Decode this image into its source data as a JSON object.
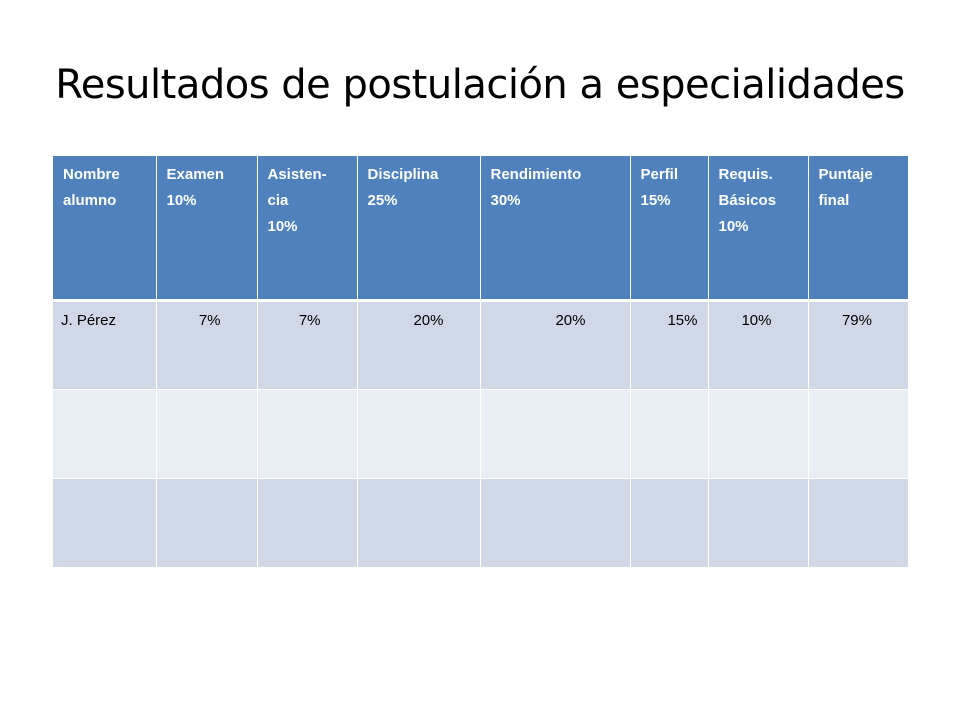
{
  "slide": {
    "title": "Resultados de postulación a especialidades"
  },
  "table": {
    "headers": [
      "Nombre\nalumno",
      "Examen\n10%",
      "Asisten-\ncia\n10%",
      "Disciplina\n25%",
      "Rendimiento\n30%",
      "Perfil\n15%",
      "Requis.\nBásicos\n10%",
      "Puntaje\nfinal"
    ],
    "rows": [
      [
        "J. Pérez",
        "7%",
        "7%",
        "20%",
        "20%",
        "15%",
        "10%",
        "79%"
      ],
      [
        "",
        "",
        "",
        "",
        "",
        "",
        "",
        ""
      ],
      [
        "",
        "",
        "",
        "",
        "",
        "",
        "",
        ""
      ]
    ]
  },
  "colors": {
    "header_bg": "#4f81bd",
    "row_band_1": "#d0d8e8",
    "row_band_2": "#e9edf4"
  }
}
